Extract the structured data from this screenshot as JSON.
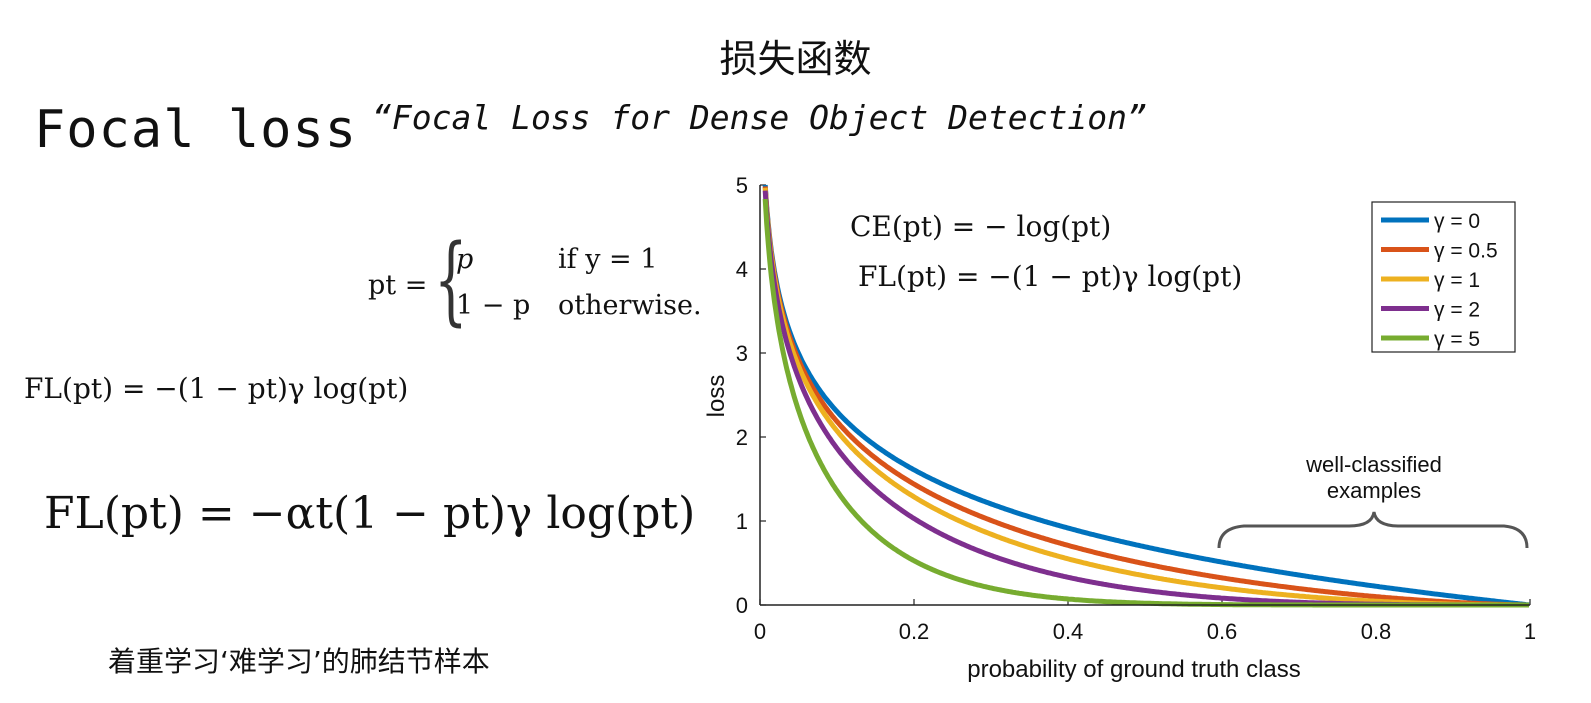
{
  "title_cn": "损失函数",
  "heading": "Focal loss",
  "subtitle": "“Focal Loss for Dense Object Detection”",
  "pt_definition": {
    "lhs": "pt =",
    "case1_expr": "p",
    "case1_cond": "if y = 1",
    "case2_expr": "1 − p",
    "case2_cond": "otherwise."
  },
  "fl_formula": "FL(pt) = −(1 − pt)γ log(pt)",
  "fl_alpha_formula": "FL(pt) = −αt(1 − pt)γ log(pt)",
  "note_cn": "着重学习‘难学习’的肺结节样本",
  "chart_data": {
    "type": "line",
    "xlabel": "probability of ground truth class",
    "ylabel": "loss",
    "xlim": [
      0,
      1
    ],
    "ylim": [
      0,
      5
    ],
    "x_ticks": [
      "0",
      "0.2",
      "0.4",
      "0.6",
      "0.8",
      "1"
    ],
    "y_ticks": [
      "0",
      "1",
      "2",
      "3",
      "4",
      "5"
    ],
    "ce_formula": "CE(pt) = − log(pt)",
    "fl_formula": "FL(pt) = −(1 − pt)γ log(pt)",
    "annotation": [
      "well-classified",
      "examples"
    ],
    "legend_position": "top-right",
    "x": [
      0.01,
      0.02,
      0.03,
      0.05,
      0.07,
      0.1,
      0.15,
      0.2,
      0.3,
      0.4,
      0.5,
      0.6,
      0.7,
      0.8,
      0.9,
      1.0
    ],
    "series": [
      {
        "name": "γ = 0",
        "gamma": 0,
        "color": "#0072BD",
        "values": [
          4.61,
          3.91,
          3.51,
          3.0,
          2.66,
          2.3,
          1.9,
          1.61,
          1.2,
          0.92,
          0.69,
          0.51,
          0.36,
          0.22,
          0.11,
          0.0
        ]
      },
      {
        "name": "γ = 0.5",
        "gamma": 0.5,
        "color": "#D95319",
        "values": [
          4.58,
          3.87,
          3.46,
          2.92,
          2.57,
          2.18,
          1.75,
          1.44,
          1.0,
          0.71,
          0.49,
          0.32,
          0.19,
          0.1,
          0.03,
          0.0
        ]
      },
      {
        "name": "γ = 1",
        "gamma": 1,
        "color": "#EDB120",
        "values": [
          4.56,
          3.83,
          3.4,
          2.85,
          2.47,
          2.07,
          1.61,
          1.29,
          0.84,
          0.55,
          0.35,
          0.2,
          0.11,
          0.04,
          0.01,
          0.0
        ]
      },
      {
        "name": "γ = 2",
        "gamma": 2,
        "color": "#7E2F8E",
        "values": [
          4.51,
          3.76,
          3.3,
          2.71,
          2.3,
          1.87,
          1.37,
          1.03,
          0.59,
          0.33,
          0.17,
          0.08,
          0.03,
          0.01,
          0.0,
          0.0
        ]
      },
      {
        "name": "γ = 5",
        "gamma": 5,
        "color": "#77AC30",
        "values": [
          4.38,
          3.54,
          3.01,
          2.32,
          1.84,
          1.36,
          0.84,
          0.53,
          0.2,
          0.07,
          0.02,
          0.01,
          0.0,
          0.0,
          0.0,
          0.0
        ]
      }
    ]
  }
}
